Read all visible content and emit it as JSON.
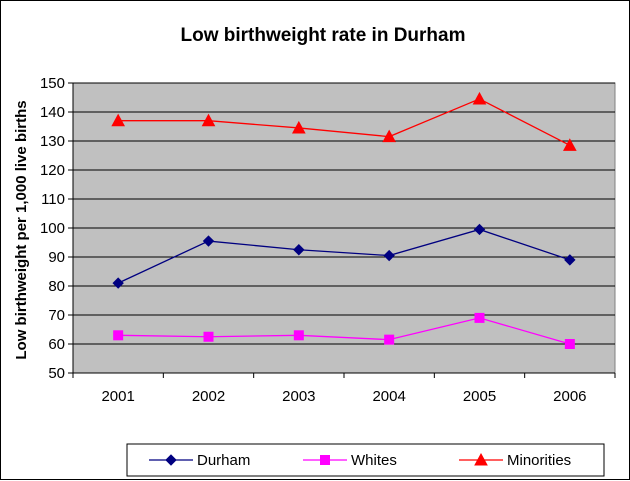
{
  "chart_data": {
    "type": "line",
    "title": "Low birthweight rate in Durham",
    "xlabel": "",
    "ylabel": "Low birthweight per 1,000 live births",
    "categories": [
      "2001",
      "2002",
      "2003",
      "2004",
      "2005",
      "2006"
    ],
    "ylim": [
      50,
      150
    ],
    "yticks": [
      50,
      60,
      70,
      80,
      90,
      100,
      110,
      120,
      130,
      140,
      150
    ],
    "grid": true,
    "plot_background": "#c0c0c0",
    "legend_position": "bottom",
    "series": [
      {
        "name": "Durham",
        "color": "#000080",
        "marker": "diamond",
        "values": [
          81,
          95.5,
          92.5,
          90.5,
          99.5,
          89
        ]
      },
      {
        "name": "Whites",
        "color": "#ff00ff",
        "marker": "square",
        "values": [
          63,
          62.5,
          63,
          61.5,
          69,
          60
        ]
      },
      {
        "name": "Minorities",
        "color": "#ff0000",
        "marker": "triangle",
        "values": [
          137,
          137,
          134.5,
          131.5,
          144.5,
          128.5
        ]
      }
    ]
  }
}
